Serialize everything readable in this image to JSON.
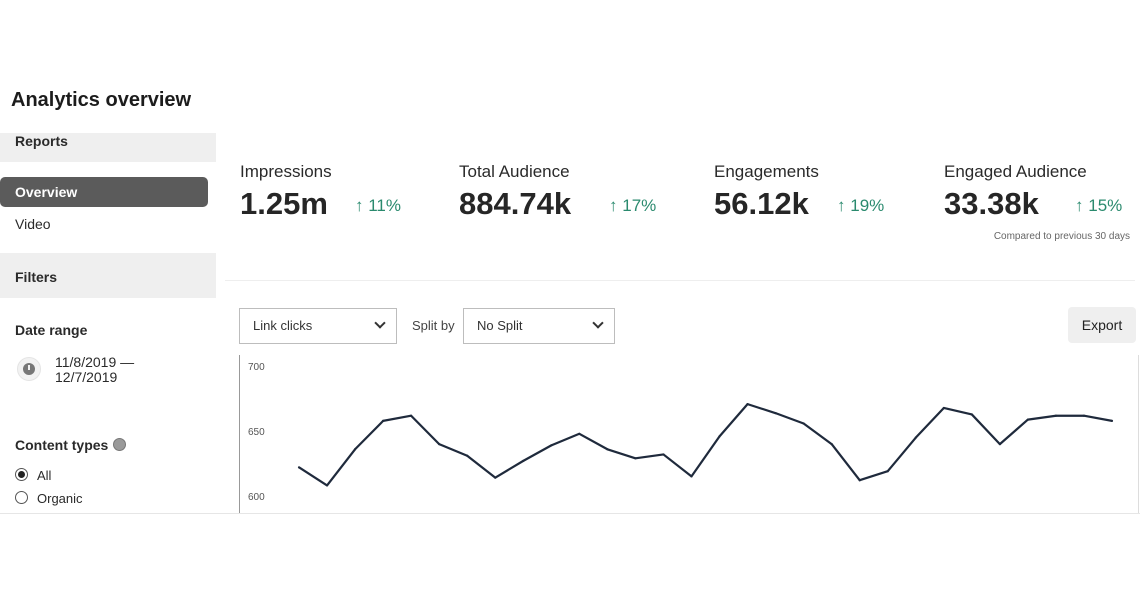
{
  "page_title": "Analytics overview",
  "sidebar": {
    "reports_heading": "Reports",
    "items": [
      {
        "label": "Overview",
        "active": true
      },
      {
        "label": "Video",
        "active": false
      }
    ],
    "filters_heading": "Filters",
    "date_range_label": "Date range",
    "date_range_start": "11/8/2019 —",
    "date_range_end": "12/7/2019",
    "content_types_label": "Content types",
    "content_types": [
      {
        "label": "All",
        "selected": true
      },
      {
        "label": "Organic",
        "selected": false
      }
    ]
  },
  "metrics": [
    {
      "label": "Impressions",
      "value": "1.25m",
      "change": "11%",
      "direction": "up"
    },
    {
      "label": "Total Audience",
      "value": "884.74k",
      "change": "17%",
      "direction": "up"
    },
    {
      "label": "Engagements",
      "value": "56.12k",
      "change": "19%",
      "direction": "up"
    },
    {
      "label": "Engaged Audience",
      "value": "33.38k",
      "change": "15%",
      "direction": "up"
    }
  ],
  "comparison_note": "Compared to previous 30 days",
  "controls": {
    "metric_select": "Link clicks",
    "split_by_label": "Split by",
    "split_select": "No Split",
    "export_label": "Export"
  },
  "colors": {
    "accent_up": "#2a8a6e",
    "line": "#1f2a3c",
    "active_nav": "#5b5b5b"
  },
  "chart_data": {
    "type": "line",
    "y_ticks": [
      "700",
      "650",
      "600"
    ],
    "ylim": [
      600,
      700
    ],
    "grid": false,
    "values": [
      623,
      609,
      637,
      659,
      663,
      641,
      632,
      615,
      628,
      640,
      649,
      637,
      630,
      633,
      616,
      647,
      672,
      665,
      657,
      641,
      613,
      620,
      646,
      669,
      664,
      641,
      660,
      663,
      663,
      659
    ]
  }
}
